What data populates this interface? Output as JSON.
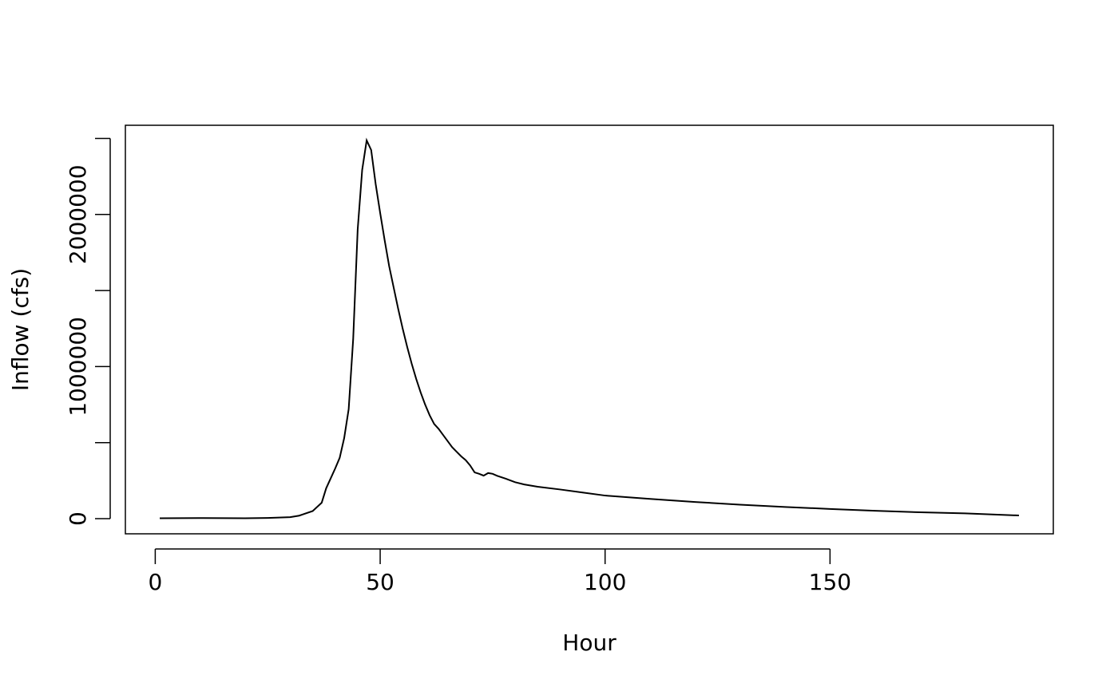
{
  "chart_data": {
    "type": "line",
    "x_label": "Hour",
    "y_label": "Inflow (cfs)",
    "x": [
      1,
      10,
      20,
      25,
      30,
      32,
      33,
      35,
      37,
      38,
      40,
      41,
      42,
      43,
      44,
      45,
      46,
      47,
      48,
      49,
      50,
      51,
      52,
      53,
      54,
      55,
      56,
      57,
      58,
      59,
      60,
      61,
      62,
      63,
      64,
      65,
      66,
      67,
      68,
      69,
      70,
      71,
      72,
      73,
      74,
      75,
      76,
      78,
      80,
      82,
      85,
      90,
      95,
      100,
      110,
      120,
      130,
      140,
      150,
      160,
      170,
      180,
      192
    ],
    "series": [
      {
        "name": "Inflow",
        "color": "#000000",
        "values": [
          3000,
          4000,
          3000,
          5000,
          10000,
          20000,
          30000,
          50000,
          105000,
          200000,
          330000,
          400000,
          530000,
          720000,
          1180000,
          1900000,
          2293000,
          2487000,
          2424000,
          2200000,
          2010000,
          1830000,
          1660000,
          1520000,
          1380000,
          1250000,
          1130000,
          1020000,
          920000,
          830000,
          750000,
          680000,
          623000,
          590000,
          550000,
          510000,
          470000,
          440000,
          410000,
          385000,
          350000,
          304000,
          295000,
          283000,
          300000,
          295000,
          282000,
          262000,
          240000,
          225000,
          210000,
          192000,
          172000,
          152000,
          130000,
          110000,
          92000,
          77000,
          64000,
          52000,
          42000,
          35000,
          21000
        ]
      }
    ],
    "xlim": [
      -6.64,
      199.64
    ],
    "xticks": [
      0,
      50,
      100,
      150
    ],
    "ylim": [
      -99500,
      2586500
    ],
    "yticks": [
      0,
      1000000,
      2000000
    ],
    "y_minor_ticks": [
      500000,
      1500000,
      2500000
    ],
    "grid": false
  }
}
